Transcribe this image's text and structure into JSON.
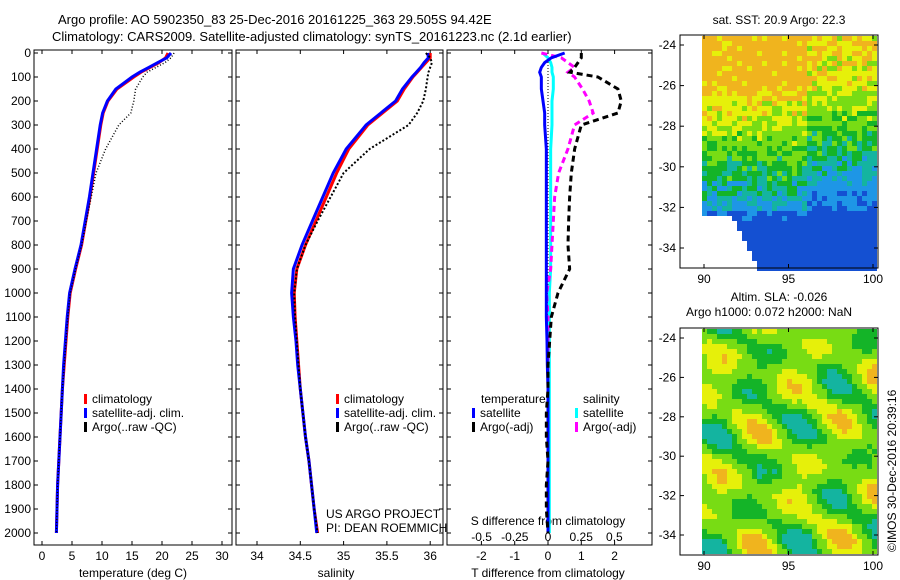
{
  "title": {
    "line1": "Argo profile: AO 5902350_83 25-Dec-2016 20161225_363 29.505S 94.42E",
    "line2": "Climatology: CARS2009. Satellite-adjusted climatology: synTS_20161223.nc (2.1d earlier)"
  },
  "credit": "©IMOS 30-Dec-2016 20:39:16",
  "project": {
    "line1": "US ARGO PROJECT",
    "line2": "PI: DEAN ROEMMICH"
  },
  "colors": {
    "climatology": "#ff0000",
    "satellite": "#0000ff",
    "argo": "#000000",
    "sal_satellite": "#00ffff",
    "sal_argo": "#ff00ff"
  },
  "chart_data": [
    {
      "type": "line",
      "name": "temperature",
      "xlabel": "temperature (deg C)",
      "ylabel": "",
      "xlim": [
        -2,
        32
      ],
      "ylim": [
        2050,
        0
      ],
      "xticks": [
        "0",
        "5",
        "10",
        "15",
        "20",
        "25",
        "30"
      ],
      "yticks": [
        "0",
        "100",
        "200",
        "300",
        "400",
        "500",
        "600",
        "700",
        "800",
        "900",
        "1000",
        "1100",
        "1200",
        "1300",
        "1400",
        "1500",
        "1600",
        "1700",
        "1800",
        "1900",
        "2000"
      ],
      "legend": [
        "climatology",
        "satellite-adj. clim.",
        "Argo(..raw -QC)"
      ],
      "depth": [
        0,
        20,
        40,
        60,
        80,
        100,
        150,
        200,
        250,
        300,
        400,
        500,
        600,
        700,
        800,
        900,
        1000,
        1100,
        1200,
        1300,
        1400,
        1500,
        1600,
        1700,
        1800,
        1900,
        2000
      ],
      "series": [
        {
          "name": "climatology",
          "values": [
            21.0,
            20.6,
            19.5,
            18.0,
            16.5,
            15.3,
            12.5,
            11.0,
            10.2,
            9.8,
            9.2,
            8.6,
            8.0,
            7.3,
            6.6,
            5.6,
            4.7,
            4.3,
            4.0,
            3.7,
            3.4,
            3.2,
            3.0,
            2.8,
            2.6,
            2.5,
            2.4
          ]
        },
        {
          "name": "satellite-adj. clim.",
          "values": [
            21.5,
            20.8,
            19.3,
            17.8,
            16.3,
            15.0,
            12.3,
            10.9,
            10.1,
            9.7,
            9.1,
            8.5,
            7.9,
            7.2,
            6.5,
            5.5,
            4.6,
            4.2,
            3.9,
            3.6,
            3.4,
            3.2,
            3.0,
            2.8,
            2.6,
            2.5,
            2.4
          ]
        },
        {
          "name": "Argo(..raw -QC)",
          "values": [
            22.0,
            21.5,
            20.5,
            19.0,
            17.5,
            16.8,
            15.6,
            15.3,
            14.8,
            12.8,
            10.6,
            9.0,
            8.2,
            7.4,
            6.6,
            5.6,
            4.7,
            4.3,
            4.0,
            3.7,
            3.4,
            3.2,
            3.0,
            2.8,
            2.6,
            2.5,
            2.4
          ]
        }
      ]
    },
    {
      "type": "line",
      "name": "salinity",
      "xlabel": "salinity",
      "xlim": [
        33.85,
        36.1
      ],
      "ylim": [
        2050,
        0
      ],
      "xticks": [
        "34",
        "34.5",
        "35",
        "35.5",
        "36"
      ],
      "legend": [
        "climatology",
        "satellite-adj. clim.",
        "Argo(..raw -QC)"
      ],
      "depth": [
        0,
        20,
        40,
        60,
        80,
        100,
        150,
        200,
        250,
        300,
        400,
        500,
        600,
        700,
        800,
        900,
        1000,
        1100,
        1200,
        1300,
        1400,
        1500,
        1600,
        1700,
        1800,
        1900,
        2000
      ],
      "series": [
        {
          "name": "climatology",
          "values": [
            36.0,
            36.0,
            35.95,
            35.9,
            35.85,
            35.8,
            35.7,
            35.62,
            35.45,
            35.28,
            35.06,
            34.92,
            34.8,
            34.68,
            34.56,
            34.46,
            34.43,
            34.44,
            34.46,
            34.48,
            34.5,
            34.53,
            34.56,
            34.6,
            34.63,
            34.66,
            34.7
          ]
        },
        {
          "name": "satellite-adj. clim.",
          "values": [
            35.97,
            35.98,
            35.93,
            35.89,
            35.84,
            35.79,
            35.68,
            35.6,
            35.43,
            35.26,
            35.03,
            34.88,
            34.76,
            34.64,
            34.52,
            34.42,
            34.4,
            34.42,
            34.45,
            34.47,
            34.5,
            34.53,
            34.56,
            34.6,
            34.63,
            34.66,
            34.69
          ]
        },
        {
          "name": "Argo(..raw -QC)",
          "values": [
            35.95,
            36.0,
            36.02,
            36.0,
            35.98,
            35.97,
            35.95,
            35.92,
            35.85,
            35.75,
            35.3,
            35.0,
            34.85,
            34.7,
            34.56,
            34.46,
            34.43,
            34.44,
            34.46,
            34.48,
            34.5,
            34.53,
            34.56,
            34.6,
            34.63,
            34.66,
            34.7
          ]
        }
      ]
    },
    {
      "type": "line",
      "name": "difference",
      "xlabel": "T difference from climatology",
      "xlabel2": "S difference from climatology",
      "xlim": [
        -3,
        3.1
      ],
      "xticks": [
        "-2",
        "-1",
        "0",
        "1",
        "2"
      ],
      "xticks2": [
        "-0.5",
        "-0.25",
        "0",
        "0.25",
        "0.5"
      ],
      "ylim": [
        2050,
        0
      ],
      "legend_titles": [
        "temperature",
        "salinity"
      ],
      "legend": [
        "satellite",
        "Argo(-adj)",
        "satellite",
        "Argo(-adj)"
      ],
      "depth": [
        0,
        20,
        40,
        60,
        80,
        100,
        150,
        200,
        250,
        300,
        400,
        500,
        600,
        700,
        800,
        900,
        1000,
        1100,
        1200,
        1300,
        1400,
        1500,
        1600,
        1700,
        1800,
        1900,
        2000
      ],
      "series": [
        {
          "name": "T satellite",
          "values": [
            0.5,
            0.1,
            -0.1,
            -0.2,
            -0.25,
            -0.2,
            -0.2,
            -0.15,
            -0.1,
            -0.1,
            -0.05,
            -0.05,
            -0.05,
            -0.05,
            -0.05,
            -0.05,
            -0.05,
            -0.05,
            -0.03,
            -0.02,
            0,
            0,
            0,
            0,
            0,
            0,
            0
          ]
        },
        {
          "name": "T Argo(-adj)",
          "values": [
            1.0,
            1.0,
            0.9,
            0.8,
            0.66,
            1.5,
            2.1,
            2.2,
            2.1,
            1.0,
            0.8,
            0.7,
            0.65,
            0.62,
            0.6,
            0.65,
            0.3,
            0.1,
            0.05,
            0,
            0,
            -0.05,
            -0.05,
            0,
            -0.05,
            -0.05,
            0
          ]
        },
        {
          "name": "S satellite",
          "values": [
            -0.04,
            0.0,
            0.02,
            0.03,
            0.03,
            0.04,
            0.04,
            0.03,
            0.03,
            0.03,
            0.02,
            0.02,
            0.02,
            0.02,
            0.02,
            0.02,
            0.01,
            0.01,
            0.01,
            0.01,
            0.01,
            0.01,
            0.01,
            0.01,
            0.01,
            0.01,
            0.01
          ]
        },
        {
          "name": "S Argo(-adj)",
          "values": [
            -0.05,
            0.1,
            0.15,
            0.2,
            0.15,
            0.2,
            0.26,
            0.31,
            0.34,
            0.2,
            0.15,
            0.08,
            0.05,
            0.04,
            0.03,
            0.02,
            -0.01,
            0.0,
            0.0,
            0.0,
            0.0,
            0.0,
            0.0,
            0.0,
            0.0,
            0.0,
            0.0
          ]
        }
      ]
    },
    {
      "type": "heatmap",
      "name": "sst-map",
      "title": "sat. SST: 20.9 Argo: 22.3",
      "xlim": [
        88.5,
        100.2
      ],
      "ylim": [
        -35.5,
        -23.4
      ],
      "xticks": [
        "90",
        "95",
        "100"
      ],
      "yticks": [
        "-24",
        "-26",
        "-28",
        "-30",
        "-32",
        "-34"
      ]
    },
    {
      "type": "heatmap",
      "name": "sla-map",
      "title": "Altim. SLA: -0.026",
      "subtitle": "Argo h1000: 0.072 h2000: NaN",
      "xlim": [
        88.5,
        100.2
      ],
      "ylim": [
        -35.5,
        -23.4
      ],
      "xticks": [
        "90",
        "95",
        "100"
      ],
      "yticks": [
        "-24",
        "-26",
        "-28",
        "-30",
        "-32",
        "-34"
      ]
    }
  ]
}
